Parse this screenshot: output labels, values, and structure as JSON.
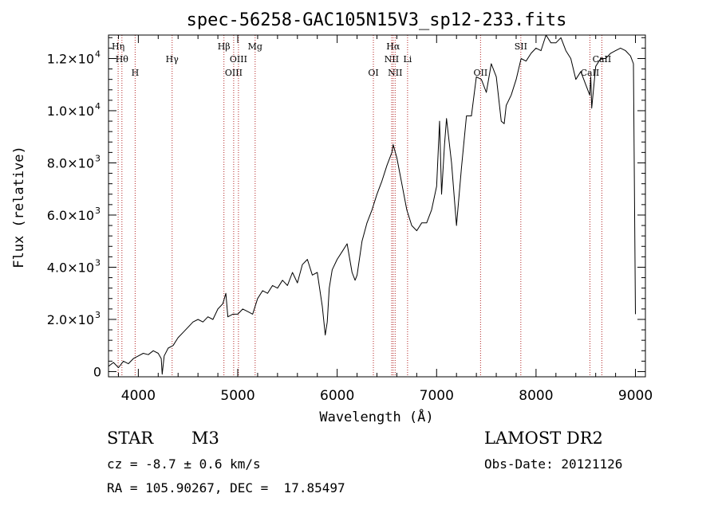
{
  "chart_data": {
    "type": "line",
    "title": "spec-56258-GAC105N15V3_sp12-233.fits",
    "xlabel": "Wavelength (Å)",
    "ylabel": "Flux (relative)",
    "xlim": [
      3700,
      9100
    ],
    "ylim": [
      -200,
      12900
    ],
    "x_ticks": [
      4000,
      5000,
      6000,
      7000,
      8000,
      9000
    ],
    "y_ticks": [
      {
        "value": 0,
        "mantissa": "0",
        "exp": ""
      },
      {
        "value": 2000,
        "mantissa": "2.0×10",
        "exp": "3"
      },
      {
        "value": 4000,
        "mantissa": "4.0×10",
        "exp": "3"
      },
      {
        "value": 6000,
        "mantissa": "6.0×10",
        "exp": "3"
      },
      {
        "value": 8000,
        "mantissa": "8.0×10",
        "exp": "3"
      },
      {
        "value": 10000,
        "mantissa": "1.0×10",
        "exp": "4"
      },
      {
        "value": 12000,
        "mantissa": "1.2×10",
        "exp": "4"
      }
    ],
    "grid": false,
    "series": [
      {
        "color": "#000000",
        "x": [
          3700,
          3750,
          3800,
          3850,
          3900,
          3950,
          4000,
          4050,
          4100,
          4150,
          4200,
          4230,
          4240,
          4260,
          4300,
          4350,
          4400,
          4450,
          4500,
          4550,
          4600,
          4650,
          4700,
          4750,
          4800,
          4850,
          4880,
          4900,
          4950,
          5000,
          5050,
          5100,
          5150,
          5200,
          5250,
          5300,
          5350,
          5400,
          5450,
          5500,
          5550,
          5600,
          5650,
          5700,
          5750,
          5800,
          5850,
          5880,
          5900,
          5920,
          5950,
          6000,
          6050,
          6100,
          6150,
          6180,
          6200,
          6250,
          6300,
          6350,
          6400,
          6450,
          6500,
          6550,
          6563,
          6600,
          6650,
          6700,
          6750,
          6800,
          6850,
          6900,
          6950,
          7000,
          7030,
          7050,
          7080,
          7100,
          7150,
          7200,
          7250,
          7300,
          7350,
          7400,
          7450,
          7500,
          7550,
          7600,
          7650,
          7680,
          7700,
          7750,
          7800,
          7850,
          7900,
          7950,
          8000,
          8050,
          8100,
          8150,
          8200,
          8250,
          8300,
          8350,
          8400,
          8450,
          8500,
          8540,
          8550,
          8560,
          8600,
          8650,
          8700,
          8750,
          8800,
          8850,
          8900,
          8950,
          8980,
          9000
        ],
        "y": [
          200,
          350,
          150,
          400,
          300,
          500,
          600,
          700,
          650,
          800,
          700,
          500,
          -100,
          600,
          900,
          1000,
          1300,
          1500,
          1700,
          1900,
          2000,
          1900,
          2100,
          2000,
          2400,
          2600,
          3000,
          2100,
          2200,
          2200,
          2400,
          2300,
          2200,
          2800,
          3100,
          3000,
          3300,
          3200,
          3500,
          3300,
          3800,
          3400,
          4100,
          4300,
          3700,
          3800,
          2500,
          1400,
          1900,
          3200,
          3900,
          4300,
          4600,
          4900,
          3800,
          3500,
          3700,
          5000,
          5700,
          6200,
          6800,
          7300,
          7900,
          8400,
          8700,
          8200,
          7200,
          6200,
          5600,
          5400,
          5700,
          5700,
          6200,
          7100,
          9600,
          6800,
          8700,
          9700,
          8000,
          5600,
          7800,
          9800,
          9800,
          11300,
          11200,
          10700,
          11800,
          11300,
          9600,
          9500,
          10200,
          10600,
          11200,
          12000,
          11900,
          12200,
          12400,
          12300,
          12900,
          12600,
          12600,
          12800,
          12300,
          12000,
          11200,
          11500,
          11000,
          10600,
          11300,
          10100,
          11700,
          12000,
          12000,
          12200,
          12300,
          12400,
          12300,
          12100,
          11800,
          2200
        ]
      }
    ],
    "lines": [
      {
        "x": 3797,
        "label": "Hη",
        "row": 0
      },
      {
        "x": 3835,
        "label": "Hθ",
        "row": 1
      },
      {
        "x": 3968,
        "label": "H",
        "row": 2
      },
      {
        "x": 4340,
        "label": "Hγ",
        "row": 1
      },
      {
        "x": 4861,
        "label": "Hβ",
        "row": 0
      },
      {
        "x": 4959,
        "label": "OIII",
        "row": 2
      },
      {
        "x": 5007,
        "label": "OIII",
        "row": 1
      },
      {
        "x": 5175,
        "label": "Mg",
        "row": 0
      },
      {
        "x": 6364,
        "label": "OI",
        "row": 2
      },
      {
        "x": 6548,
        "label": "NII",
        "row": 1
      },
      {
        "x": 6563,
        "label": "Hα",
        "row": 0
      },
      {
        "x": 6583,
        "label": "NII",
        "row": 2
      },
      {
        "x": 6708,
        "label": "Li",
        "row": 1
      },
      {
        "x": 7442,
        "label": "OII",
        "row": 2
      },
      {
        "x": 7847,
        "label": "SII",
        "row": 0
      },
      {
        "x": 8542,
        "label": "CaII",
        "row": 2
      },
      {
        "x": 8662,
        "label": "CaII",
        "row": 1
      }
    ]
  },
  "info": {
    "class": "STAR",
    "subclass": "M3",
    "survey": "LAMOST DR2",
    "cz": "cz = -8.7 ± 0.6 km/s",
    "obs_date": "Obs-Date: 20121126",
    "radec": "RA = 105.90267, DEC =  17.85497"
  }
}
